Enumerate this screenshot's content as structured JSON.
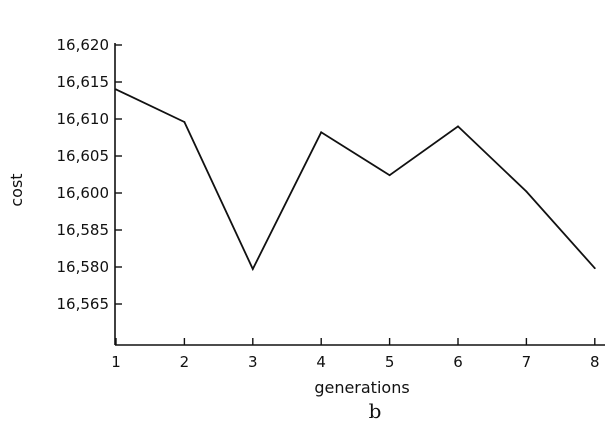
{
  "chart_data": {
    "type": "line",
    "xlabel": "generations",
    "ylabel": "cost",
    "caption": "b",
    "x": [
      1,
      2,
      3,
      4,
      5,
      6,
      7,
      8
    ],
    "y_tick_labels": [
      "16,620",
      "16,615",
      "16,610",
      "16,605",
      "16,600",
      "16,585",
      "16,580",
      "16,565"
    ],
    "x_tick_labels": [
      "1",
      "2",
      "3",
      "4",
      "5",
      "6",
      "7",
      "8"
    ],
    "series": [
      {
        "values": [
          16614,
          16609.6,
          16579.2,
          16608.2,
          16602.4,
          16609,
          16600.2,
          16579.5
        ]
      }
    ],
    "grid": false,
    "line_color": "#111111"
  }
}
